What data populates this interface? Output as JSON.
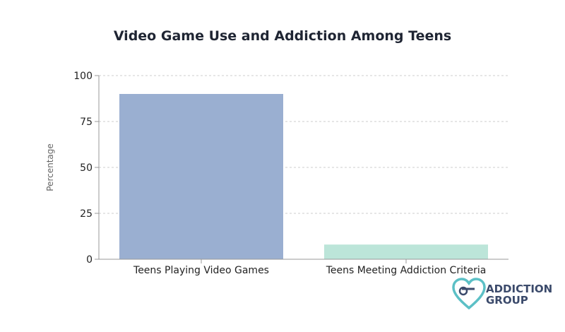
{
  "chart_data": {
    "type": "bar",
    "title": "Video Game Use and Addiction Among Teens",
    "ylabel": "Percentage",
    "xlabel": "",
    "categories": [
      "Teens Playing Video Games",
      "Teens Meeting Addiction Criteria"
    ],
    "values": [
      90,
      8
    ],
    "ylim": [
      0,
      100
    ],
    "yticks": [
      0,
      25,
      50,
      75,
      100
    ],
    "grid": true,
    "colors": [
      "#9aafd1",
      "#bce5d9"
    ]
  },
  "logo": {
    "line1": "ADDICTION",
    "line2": "GROUP",
    "colors": {
      "teal": "#5cc0c6",
      "navy": "#3b4a6b"
    }
  }
}
